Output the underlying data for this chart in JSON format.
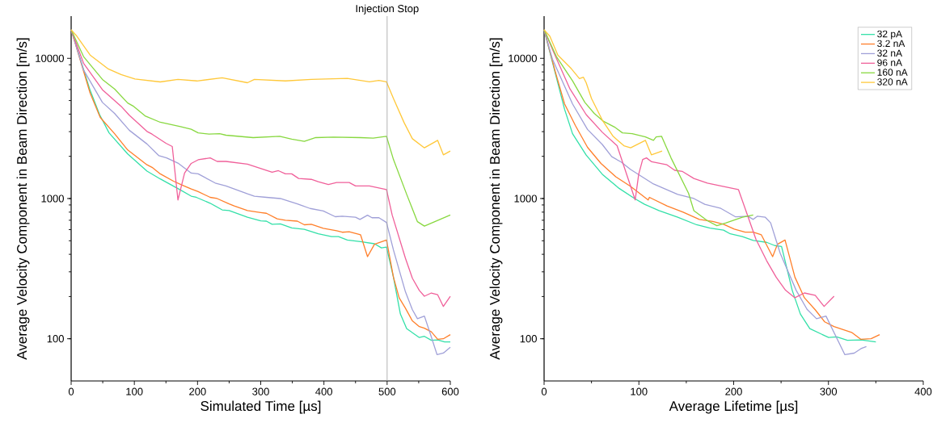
{
  "chart_data": [
    {
      "type": "line",
      "xlabel": "Simulated Time [µs]",
      "ylabel": "Average Velocity Component in Beam Direction [m/s]",
      "log": "y",
      "xlim": [
        0,
        600
      ],
      "ylim": [
        50,
        20000
      ],
      "xticks": [
        0,
        100,
        200,
        300,
        400,
        500,
        600
      ],
      "yticks": [
        100,
        1000,
        10000
      ],
      "legend": false,
      "ref_lines": [
        {
          "axis": "x",
          "value": 500,
          "label": "Injection Stop",
          "color": "#a0a0a0"
        }
      ],
      "series": [
        {
          "color": "#33e0a8",
          "x": [
            0,
            30,
            45,
            60,
            89.5,
            120,
            141,
            173,
            190,
            198,
            220,
            239,
            250,
            279,
            300,
            309,
            318,
            331,
            349,
            369,
            391,
            412,
            423,
            437,
            458,
            480,
            491,
            499,
            510,
            521,
            531,
            551,
            559,
            570,
            580,
            591,
            600
          ],
          "values": [
            16000,
            5920,
            3970,
            2940,
            2080,
            1570,
            1380,
            1150,
            1040,
            1020,
            926,
            830,
            820,
            736,
            694,
            690,
            655,
            660,
            617,
            603,
            560,
            535,
            535,
            506,
            493,
            476,
            445,
            450,
            275,
            150,
            118,
            102,
            104,
            97.5,
            98,
            95,
            95
          ]
        },
        {
          "color": "#ff7f2a",
          "x": [
            0,
            30,
            46,
            68.7,
            89.5,
            120,
            128,
            141,
            162,
            175,
            190,
            201,
            220,
            231,
            250,
            258,
            279,
            300,
            309,
            326,
            339,
            358,
            369,
            380,
            399,
            420,
            429,
            440,
            458,
            469,
            480,
            499,
            510,
            519,
            529,
            540,
            551,
            559,
            570,
            580,
            589,
            600
          ],
          "values": [
            16000,
            5660,
            3790,
            2900,
            2220,
            1740,
            1670,
            1500,
            1330,
            1250,
            1170,
            1120,
            1020,
            1000,
            915,
            885,
            820,
            795,
            785,
            716,
            700,
            690,
            650,
            655,
            613,
            590,
            575,
            580,
            551,
            385,
            472,
            506,
            275,
            196,
            165,
            134,
            122,
            119,
            112,
            99,
            100,
            107
          ]
        },
        {
          "color": "#a0a0d8",
          "x": [
            0,
            19.6,
            49.5,
            68.7,
            92,
            120,
            139,
            151,
            169,
            190,
            201,
            228,
            245,
            279,
            290,
            309,
            331,
            358,
            378,
            399,
            418,
            429,
            450,
            457,
            469,
            476,
            487,
            499,
            510,
            529,
            540,
            548,
            559,
            570,
            579,
            589,
            600
          ],
          "values": [
            16000,
            8260,
            4850,
            4050,
            3070,
            2450,
            2020,
            1950,
            1790,
            1520,
            1500,
            1290,
            1230,
            1080,
            1040,
            1020,
            1000,
            915,
            850,
            815,
            742,
            748,
            736,
            709,
            760,
            730,
            730,
            675,
            430,
            216,
            161,
            139,
            145,
            103,
            77,
            79,
            87
          ]
        },
        {
          "color": "#f0609a",
          "x": [
            0,
            19.6,
            49.5,
            79,
            92,
            120,
            128,
            150,
            160,
            169,
            179.5,
            190,
            201,
            220,
            231,
            245,
            279,
            318,
            328,
            339,
            349,
            360,
            380,
            391,
            407,
            420,
            440,
            450,
            472,
            499,
            508,
            529,
            540,
            551,
            559,
            570,
            580,
            589,
            600
          ],
          "values": [
            16000,
            9230,
            5970,
            4550,
            3930,
            3010,
            2880,
            2480,
            2350,
            977,
            1520,
            1780,
            1890,
            1950,
            1840,
            1840,
            1760,
            1540,
            1580,
            1500,
            1500,
            1390,
            1370,
            1320,
            1260,
            1300,
            1300,
            1230,
            1230,
            1160,
            763,
            375,
            270,
            221,
            201,
            212,
            206,
            170,
            201
          ]
        },
        {
          "color": "#88d840",
          "x": [
            0,
            19.6,
            49.5,
            68.7,
            89.5,
            98,
            117.7,
            141,
            173,
            190,
            201,
            218,
            235,
            245,
            288,
            330,
            349,
            369,
            387,
            415,
            458,
            478,
            499,
            510,
            531,
            548,
            559,
            600
          ],
          "values": [
            16000,
            10300,
            7070,
            6050,
            4800,
            4570,
            3870,
            3500,
            3260,
            3120,
            2940,
            2880,
            2900,
            2830,
            2720,
            2780,
            2650,
            2560,
            2720,
            2740,
            2720,
            2700,
            2780,
            1900,
            1070,
            684,
            636,
            763
          ]
        },
        {
          "color": "#ffc83a",
          "x": [
            0,
            9,
            30,
            58,
            79,
            101,
            141,
            169,
            199,
            239,
            279,
            290,
            339,
            380,
            437,
            472,
            487,
            499,
            510,
            527,
            540,
            559,
            580,
            589,
            600
          ],
          "values": [
            16000,
            14400,
            10550,
            8440,
            7660,
            7130,
            6790,
            7070,
            6900,
            7260,
            6700,
            7070,
            6900,
            7070,
            7200,
            6800,
            6950,
            6800,
            5170,
            3470,
            2670,
            2300,
            2600,
            2050,
            2180
          ]
        }
      ]
    },
    {
      "type": "line",
      "xlabel": "Average Lifetime [µs]",
      "ylabel": "Average Velocity Component in Beam Direction [m/s]",
      "log": "y",
      "xlim": [
        0,
        400
      ],
      "ylim": [
        50,
        20000
      ],
      "xticks": [
        0,
        100,
        200,
        300,
        400
      ],
      "yticks": [
        100,
        1000,
        10000
      ],
      "legend": "top right",
      "series": [
        {
          "name": "32 pA",
          "color": "#33e0a8",
          "x": [
            0,
            21.6,
            30,
            44.4,
            61.4,
            78.5,
            95.5,
            106,
            121.1,
            141,
            160.9,
            175.1,
            189.3,
            196.4,
            209.2,
            220.6,
            234.8,
            243.3,
            250.5,
            261.8,
            270.4,
            280.3,
            300.2,
            308.7,
            320,
            334.3,
            350
          ],
          "values": [
            16000,
            4330,
            2900,
            2040,
            1490,
            1190,
            1000,
            910,
            820,
            736,
            650,
            615,
            595,
            560,
            535,
            502,
            487,
            462,
            455,
            221,
            150,
            118,
            102,
            103,
            97.5,
            98,
            95
          ]
        },
        {
          "name": "3.2 nA",
          "color": "#ff7f2a",
          "x": [
            0,
            11.7,
            21.6,
            33,
            45.8,
            60,
            75.6,
            91.3,
            109.8,
            111.1,
            129.6,
            146.7,
            163.8,
            178,
            189.3,
            200.7,
            212.1,
            220.6,
            229.2,
            241.1,
            246.2,
            254.2,
            264.6,
            274.6,
            286,
            296,
            305.9,
            324.4,
            334.3,
            345,
            354
          ],
          "values": [
            16000,
            8080,
            4730,
            3320,
            2320,
            1780,
            1430,
            1220,
            977,
            1020,
            885,
            800,
            710,
            687,
            655,
            605,
            576,
            576,
            551,
            385,
            472,
            506,
            275,
            196,
            161,
            132,
            122,
            111,
            99,
            100,
            107
          ]
        },
        {
          "name": "32 nA",
          "color": "#a0a0d8",
          "x": [
            0,
            8.8,
            21.6,
            30,
            45.8,
            61.4,
            71.4,
            81.3,
            91.3,
            115.4,
            141,
            158,
            169.5,
            186.5,
            202.1,
            215,
            220.6,
            224.9,
            233.4,
            239,
            249,
            266,
            277.4,
            287.4,
            297.4,
            317.3,
            327.2,
            334.3,
            340
          ],
          "values": [
            16000,
            9870,
            6330,
            4730,
            3110,
            2430,
            1990,
            1820,
            1610,
            1270,
            1070,
            1000,
            910,
            850,
            740,
            748,
            710,
            748,
            735,
            671,
            409,
            221,
            162,
            139,
            145,
            77,
            79,
            85,
            88
          ]
        },
        {
          "name": "96 nA",
          "color": "#f0609a",
          "x": [
            0,
            10.2,
            27.3,
            44.4,
            61.4,
            77,
            96.1,
            99.8,
            104,
            108,
            113.5,
            129.6,
            137.8,
            146,
            158,
            172.3,
            186.5,
            205,
            214.9,
            223.5,
            234.8,
            244.8,
            254.7,
            264.6,
            274.6,
            286,
            295.4,
            305.9
          ],
          "values": [
            16000,
            11000,
            6050,
            3970,
            2970,
            2380,
            977,
            1490,
            1900,
            1950,
            1830,
            1740,
            1590,
            1560,
            1390,
            1290,
            1230,
            1160,
            750,
            512,
            360,
            275,
            222,
            196,
            212,
            204,
            170,
            201
          ]
        },
        {
          "name": "160 nA",
          "color": "#88d840",
          "x": [
            0,
            13,
            30,
            43,
            52.9,
            62.8,
            74.2,
            82.7,
            93,
            106.9,
            115.4,
            118.2,
            123.9,
            133.9,
            152.4,
            158,
            172.3,
            182.3,
            192,
            209.2,
            220.6
          ],
          "values": [
            16000,
            10300,
            6910,
            4850,
            4050,
            3550,
            3240,
            2940,
            2900,
            2750,
            2600,
            2750,
            2780,
            1950,
            1090,
            820,
            694,
            640,
            671,
            736,
            763
          ]
        },
        {
          "name": "320 nA",
          "color": "#ffc83a",
          "x": [
            0,
            6,
            14.5,
            28.7,
            37.3,
            41.5,
            44.4,
            50,
            61.4,
            72.8,
            84.2,
            91.3,
            106.9,
            113.2,
            124.5
          ],
          "values": [
            16000,
            14400,
            10550,
            8440,
            7170,
            7330,
            6700,
            5170,
            3625,
            2780,
            2380,
            2300,
            2600,
            2050,
            2180
          ]
        }
      ]
    }
  ]
}
